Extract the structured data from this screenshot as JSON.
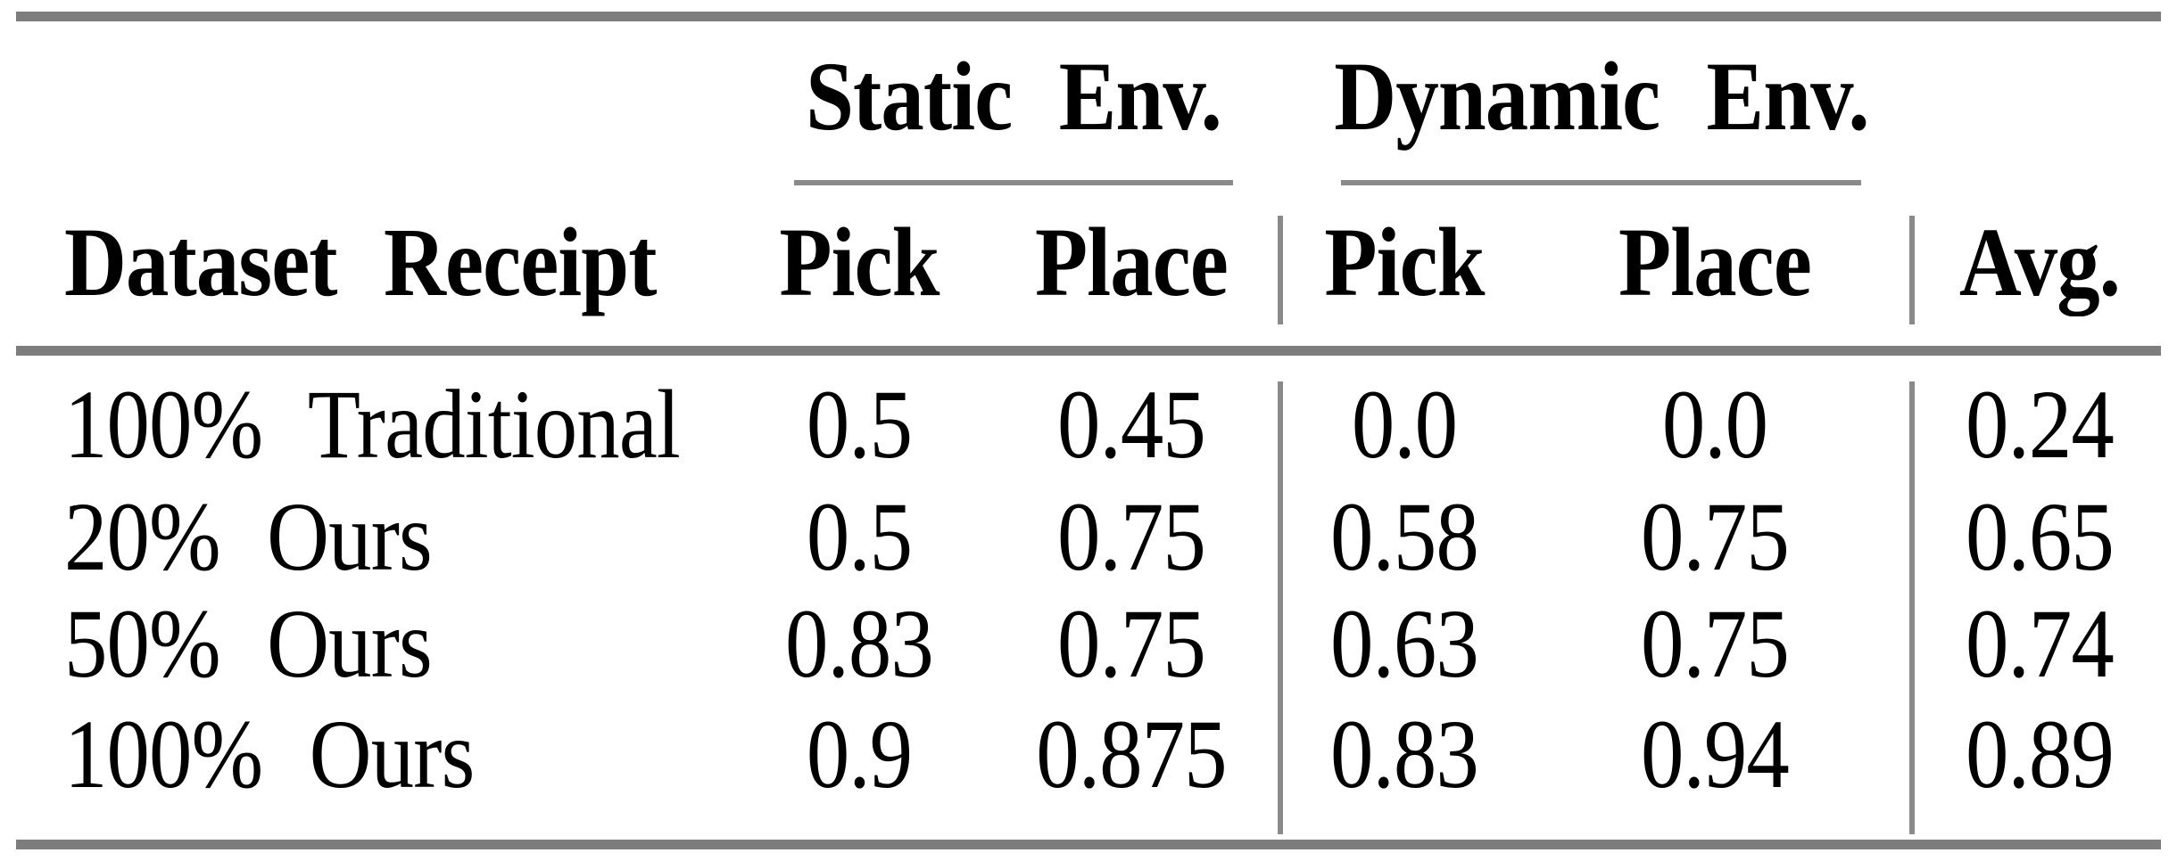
{
  "table": {
    "title_hint": "success-rate results table",
    "colors": {
      "background": "#ffffff",
      "text": "#000000",
      "thick_rule_gray": "#7d7d7d",
      "thin_rule_gray": "#8a8a8a"
    },
    "col_groups": [
      {
        "label": "Static Env."
      },
      {
        "label": "Dynamic Env."
      }
    ],
    "headers": {
      "row_label": "Dataset Receipt",
      "static_pick": "Pick",
      "static_place": "Place",
      "dynamic_pick": "Pick",
      "dynamic_place": "Place",
      "avg": "Avg."
    },
    "rows": [
      {
        "label": "100% Traditional",
        "static_pick": "0.5",
        "static_place": "0.45",
        "dynamic_pick": "0.0",
        "dynamic_place": "0.0",
        "avg": "0.24"
      },
      {
        "label": "20% Ours",
        "static_pick": "0.5",
        "static_place": "0.75",
        "dynamic_pick": "0.58",
        "dynamic_place": "0.75",
        "avg": "0.65"
      },
      {
        "label": "50% Ours",
        "static_pick": "0.83",
        "static_place": "0.75",
        "dynamic_pick": "0.63",
        "dynamic_place": "0.75",
        "avg": "0.74"
      },
      {
        "label": "100% Ours",
        "static_pick": "0.9",
        "static_place": "0.875",
        "dynamic_pick": "0.83",
        "dynamic_place": "0.94",
        "avg": "0.89"
      }
    ]
  }
}
